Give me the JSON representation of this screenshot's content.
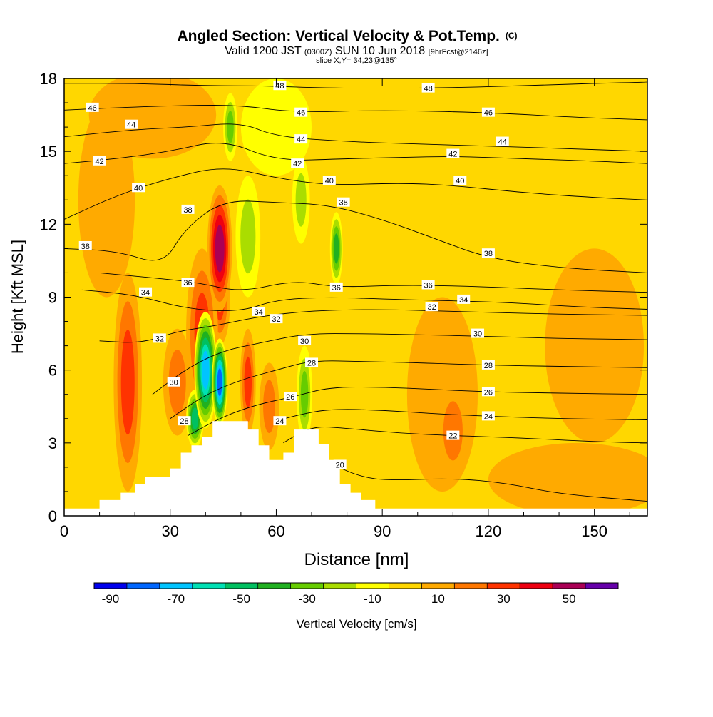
{
  "chart_data": {
    "type": "heatmap",
    "title": "Angled Section: Vertical Velocity & Pot.Temp.",
    "title_mark": "(C)",
    "subtitle_parts": [
      "Valid 1200 JST ",
      "(0300Z)",
      " SUN 10 Jun 2018 ",
      "[9hrFcst@2146z]"
    ],
    "slice_text": "slice X,Y= 34,23@135°",
    "xlabel": "Distance [nm]",
    "ylabel": "Height [Kft MSL]",
    "xlim": [
      0,
      165
    ],
    "ylim": [
      0,
      18
    ],
    "x_ticks": [
      0,
      30,
      60,
      90,
      120,
      150
    ],
    "y_ticks": [
      0,
      3,
      6,
      9,
      12,
      15,
      18
    ],
    "background_value": -5,
    "colorbar": {
      "label": "Vertical Velocity [cm/s]",
      "bounds": [
        -95,
        -85,
        -75,
        -65,
        -55,
        -45,
        -35,
        -25,
        -15,
        -5,
        5,
        15,
        25,
        35,
        45,
        55,
        65
      ],
      "colors": [
        "#0000ee",
        "#0066ff",
        "#00c4ff",
        "#00e0b4",
        "#00c060",
        "#20b020",
        "#66cc00",
        "#aadd00",
        "#ffff00",
        "#ffd700",
        "#ffaa00",
        "#ff7700",
        "#ff3300",
        "#ee0011",
        "#aa0055",
        "#6600aa"
      ],
      "tick_labels": [
        "-90",
        "-70",
        "-50",
        "-30",
        "-10",
        "10",
        "30",
        "50"
      ],
      "tick_values": [
        -90,
        -70,
        -50,
        -30,
        -10,
        10,
        30,
        50
      ]
    },
    "terrain": [
      {
        "x": 0,
        "h": 0.3
      },
      {
        "x": 10,
        "h": 0.3
      },
      {
        "x": 10,
        "h": 0.65
      },
      {
        "x": 16,
        "h": 0.65
      },
      {
        "x": 16,
        "h": 0.95
      },
      {
        "x": 20,
        "h": 0.95
      },
      {
        "x": 20,
        "h": 1.3
      },
      {
        "x": 23,
        "h": 1.3
      },
      {
        "x": 23,
        "h": 1.6
      },
      {
        "x": 30,
        "h": 1.6
      },
      {
        "x": 30,
        "h": 1.95
      },
      {
        "x": 33,
        "h": 1.95
      },
      {
        "x": 33,
        "h": 2.6
      },
      {
        "x": 36,
        "h": 2.6
      },
      {
        "x": 36,
        "h": 2.9
      },
      {
        "x": 39,
        "h": 2.9
      },
      {
        "x": 39,
        "h": 3.25
      },
      {
        "x": 42,
        "h": 3.25
      },
      {
        "x": 42,
        "h": 3.9
      },
      {
        "x": 52,
        "h": 3.9
      },
      {
        "x": 52,
        "h": 3.55
      },
      {
        "x": 55,
        "h": 3.55
      },
      {
        "x": 55,
        "h": 2.9
      },
      {
        "x": 58,
        "h": 2.9
      },
      {
        "x": 58,
        "h": 2.3
      },
      {
        "x": 62,
        "h": 2.3
      },
      {
        "x": 62,
        "h": 2.6
      },
      {
        "x": 65,
        "h": 2.6
      },
      {
        "x": 65,
        "h": 3.55
      },
      {
        "x": 72,
        "h": 3.55
      },
      {
        "x": 72,
        "h": 2.95
      },
      {
        "x": 75,
        "h": 2.95
      },
      {
        "x": 75,
        "h": 2.3
      },
      {
        "x": 78,
        "h": 2.3
      },
      {
        "x": 78,
        "h": 1.3
      },
      {
        "x": 81,
        "h": 1.3
      },
      {
        "x": 81,
        "h": 0.95
      },
      {
        "x": 84,
        "h": 0.95
      },
      {
        "x": 84,
        "h": 0.65
      },
      {
        "x": 88,
        "h": 0.65
      },
      {
        "x": 88,
        "h": 0.3
      },
      {
        "x": 165,
        "h": 0.3
      }
    ],
    "velocity_features": [
      {
        "x": 18,
        "y": 5.5,
        "rx": 4.0,
        "ry": 4.5,
        "v": 30
      },
      {
        "x": 32,
        "y": 5.5,
        "rx": 4.0,
        "ry": 2.2,
        "v": 28
      },
      {
        "x": 39,
        "y": 7.5,
        "rx": 4.5,
        "ry": 3.5,
        "v": 32
      },
      {
        "x": 44,
        "y": 11.0,
        "rx": 3.5,
        "ry": 2.6,
        "v": 58
      },
      {
        "x": 44,
        "y": 9.0,
        "rx": 3.0,
        "ry": 2.0,
        "v": 30
      },
      {
        "x": 40,
        "y": 6.0,
        "rx": 3.2,
        "ry": 2.4,
        "v": -72
      },
      {
        "x": 44,
        "y": 5.5,
        "rx": 2.2,
        "ry": 1.8,
        "v": -88
      },
      {
        "x": 37,
        "y": 4.0,
        "rx": 2.5,
        "ry": 1.2,
        "v": -52
      },
      {
        "x": 47,
        "y": 16.0,
        "rx": 2.0,
        "ry": 1.4,
        "v": -30
      },
      {
        "x": 52,
        "y": 11.5,
        "rx": 3.5,
        "ry": 2.5,
        "v": -25
      },
      {
        "x": 67,
        "y": 13.0,
        "rx": 2.5,
        "ry": 1.8,
        "v": -25
      },
      {
        "x": 77,
        "y": 11.0,
        "rx": 1.8,
        "ry": 1.5,
        "v": -40
      },
      {
        "x": 68,
        "y": 5.0,
        "rx": 2.2,
        "ry": 2.0,
        "v": -35
      },
      {
        "x": 52,
        "y": 5.5,
        "rx": 2.2,
        "ry": 2.2,
        "v": 30
      },
      {
        "x": 58,
        "y": 4.5,
        "rx": 2.8,
        "ry": 1.8,
        "v": 25
      },
      {
        "x": 110,
        "y": 3.5,
        "rx": 4.5,
        "ry": 2.0,
        "v": 25
      },
      {
        "x": 107,
        "y": 5.0,
        "rx": 10.0,
        "ry": 4.0,
        "v": 8
      },
      {
        "x": 150,
        "y": 7.0,
        "rx": 14.0,
        "ry": 4.0,
        "v": 5
      },
      {
        "x": 25,
        "y": 16.5,
        "rx": 18.0,
        "ry": 1.8,
        "v": 5
      },
      {
        "x": 12,
        "y": 13.0,
        "rx": 8.0,
        "ry": 4.0,
        "v": 6
      },
      {
        "x": 145,
        "y": 1.5,
        "rx": 25.0,
        "ry": 1.5,
        "v": 5
      },
      {
        "x": 100,
        "y": 15.0,
        "rx": 14.0,
        "ry": 3.0,
        "v": -3
      },
      {
        "x": 60,
        "y": 16.0,
        "rx": 10.0,
        "ry": 2.0,
        "v": -12
      }
    ],
    "isentropes": [
      {
        "theta": 20,
        "label_x": 78,
        "label_y": 2.0,
        "pts": [
          [
            64,
            2.4
          ],
          [
            70,
            2.35
          ],
          [
            76,
            2.1
          ],
          [
            84,
            1.6
          ],
          [
            92,
            1.45
          ],
          [
            110,
            1.55
          ],
          [
            125,
            1.35
          ],
          [
            140,
            0.9
          ],
          [
            165,
            0.6
          ]
        ]
      },
      {
        "theta": 22,
        "label_x": 110,
        "label_y": 3.3,
        "pts": [
          [
            62,
            3.0
          ],
          [
            70,
            3.7
          ],
          [
            80,
            3.6
          ],
          [
            95,
            3.4
          ],
          [
            110,
            3.3
          ],
          [
            130,
            3.2
          ],
          [
            150,
            3.05
          ],
          [
            165,
            3.0
          ]
        ]
      },
      {
        "theta": 24,
        "label_x": 120,
        "label_y": 4.1,
        "pts": [
          [
            60,
            3.9
          ],
          [
            66,
            4.15
          ],
          [
            75,
            4.4
          ],
          [
            90,
            4.35
          ],
          [
            105,
            4.2
          ],
          [
            120,
            4.1
          ],
          [
            140,
            4.0
          ],
          [
            165,
            3.95
          ]
        ]
      },
      {
        "theta": 26,
        "label_x": 120,
        "label_y": 5.1,
        "pts": [
          [
            35,
            3.3
          ],
          [
            45,
            4.1
          ],
          [
            55,
            4.6
          ],
          [
            65,
            4.9
          ],
          [
            75,
            5.3
          ],
          [
            90,
            5.3
          ],
          [
            105,
            5.2
          ],
          [
            120,
            5.1
          ],
          [
            140,
            5.05
          ],
          [
            165,
            5.0
          ]
        ]
      },
      {
        "theta": 28,
        "label_x": 120,
        "label_y": 6.2,
        "pts": [
          [
            30,
            4.0
          ],
          [
            40,
            5.0
          ],
          [
            50,
            5.6
          ],
          [
            60,
            6.0
          ],
          [
            70,
            6.4
          ],
          [
            85,
            6.35
          ],
          [
            100,
            6.3
          ],
          [
            120,
            6.2
          ],
          [
            140,
            6.15
          ],
          [
            165,
            6.1
          ]
        ]
      },
      {
        "theta": 30,
        "label_x": 117,
        "label_y": 7.4,
        "pts": [
          [
            25,
            5.0
          ],
          [
            35,
            6.1
          ],
          [
            45,
            6.8
          ],
          [
            55,
            7.1
          ],
          [
            68,
            7.5
          ],
          [
            85,
            7.5
          ],
          [
            100,
            7.45
          ],
          [
            117,
            7.4
          ],
          [
            140,
            7.3
          ],
          [
            165,
            7.25
          ]
        ]
      },
      {
        "theta": 32,
        "label_x": 112,
        "label_y": 8.4,
        "pts": [
          [
            10,
            7.2
          ],
          [
            22,
            7.1
          ],
          [
            32,
            7.6
          ],
          [
            42,
            7.8
          ],
          [
            55,
            8.2
          ],
          [
            70,
            8.45
          ],
          [
            90,
            8.5
          ],
          [
            112,
            8.4
          ],
          [
            140,
            8.3
          ],
          [
            165,
            8.25
          ]
        ]
      },
      {
        "theta": 34,
        "label_x": 124,
        "label_y": 8.8,
        "pts": [
          [
            5,
            9.3
          ],
          [
            20,
            9.1
          ],
          [
            35,
            8.5
          ],
          [
            50,
            8.4
          ],
          [
            60,
            8.9
          ],
          [
            75,
            9.0
          ],
          [
            95,
            8.9
          ],
          [
            124,
            8.8
          ],
          [
            145,
            8.6
          ],
          [
            165,
            8.5
          ]
        ]
      },
      {
        "theta": 36,
        "label_x": 77,
        "label_y": 9.4,
        "pts": [
          [
            10,
            10.0
          ],
          [
            25,
            9.8
          ],
          [
            38,
            9.6
          ],
          [
            50,
            9.2
          ],
          [
            65,
            9.7
          ],
          [
            77,
            9.4
          ],
          [
            95,
            9.5
          ],
          [
            115,
            9.45
          ],
          [
            140,
            9.3
          ],
          [
            165,
            9.2
          ]
        ]
      },
      {
        "theta": 38,
        "label_x": 120,
        "label_y": 10.6,
        "pts": [
          [
            0,
            11.0
          ],
          [
            15,
            10.9
          ],
          [
            28,
            10.3
          ],
          [
            34,
            11.8
          ],
          [
            45,
            13.0
          ],
          [
            60,
            12.9
          ],
          [
            75,
            12.8
          ],
          [
            90,
            12.2
          ],
          [
            105,
            11.4
          ],
          [
            120,
            10.6
          ],
          [
            140,
            10.2
          ],
          [
            165,
            10.0
          ]
        ]
      },
      {
        "theta": 40,
        "label_x": 110,
        "label_y": 13.6,
        "pts": [
          [
            0,
            12.2
          ],
          [
            15,
            13.2
          ],
          [
            30,
            13.9
          ],
          [
            45,
            14.4
          ],
          [
            60,
            13.9
          ],
          [
            75,
            13.6
          ],
          [
            95,
            13.7
          ],
          [
            110,
            13.6
          ],
          [
            130,
            13.3
          ],
          [
            150,
            13.1
          ],
          [
            165,
            13.0
          ]
        ]
      },
      {
        "theta": 42,
        "label_x": 110,
        "label_y": 14.8,
        "pts": [
          [
            0,
            14.5
          ],
          [
            15,
            14.7
          ],
          [
            30,
            15.0
          ],
          [
            45,
            15.5
          ],
          [
            60,
            14.6
          ],
          [
            80,
            14.7
          ],
          [
            95,
            14.75
          ],
          [
            110,
            14.8
          ],
          [
            130,
            14.7
          ],
          [
            150,
            14.6
          ],
          [
            165,
            14.5
          ]
        ]
      },
      {
        "theta": 44,
        "label_x": 125,
        "label_y": 15.2,
        "pts": [
          [
            0,
            15.6
          ],
          [
            20,
            15.9
          ],
          [
            35,
            16.0
          ],
          [
            50,
            16.2
          ],
          [
            60,
            15.6
          ],
          [
            80,
            15.4
          ],
          [
            100,
            15.3
          ],
          [
            125,
            15.2
          ],
          [
            145,
            15.1
          ],
          [
            165,
            15.0
          ]
        ]
      },
      {
        "theta": 46,
        "label_x": 120,
        "label_y": 16.6,
        "pts": [
          [
            0,
            16.7
          ],
          [
            15,
            16.8
          ],
          [
            35,
            16.9
          ],
          [
            50,
            16.9
          ],
          [
            65,
            16.6
          ],
          [
            90,
            16.7
          ],
          [
            120,
            16.6
          ],
          [
            145,
            16.4
          ],
          [
            165,
            16.3
          ]
        ]
      },
      {
        "theta": 48,
        "label_x": 104,
        "label_y": 17.6,
        "pts": [
          [
            0,
            17.8
          ],
          [
            20,
            17.8
          ],
          [
            40,
            17.7
          ],
          [
            56,
            17.7
          ],
          [
            75,
            17.6
          ],
          [
            104,
            17.6
          ],
          [
            130,
            17.7
          ],
          [
            150,
            17.8
          ],
          [
            165,
            17.85
          ]
        ]
      }
    ],
    "theta_labels": [
      {
        "x": 8,
        "y": 16.8,
        "text": "46"
      },
      {
        "x": 19,
        "y": 16.1,
        "text": "44"
      },
      {
        "x": 10,
        "y": 14.6,
        "text": "42"
      },
      {
        "x": 21,
        "y": 13.5,
        "text": "40"
      },
      {
        "x": 35,
        "y": 12.6,
        "text": "38"
      },
      {
        "x": 6,
        "y": 11.1,
        "text": "38"
      },
      {
        "x": 35,
        "y": 9.6,
        "text": "36"
      },
      {
        "x": 23,
        "y": 9.2,
        "text": "34"
      },
      {
        "x": 27,
        "y": 7.3,
        "text": "32"
      },
      {
        "x": 31,
        "y": 5.5,
        "text": "30"
      },
      {
        "x": 34,
        "y": 3.9,
        "text": "28"
      },
      {
        "x": 61,
        "y": 3.9,
        "text": "24"
      },
      {
        "x": 64,
        "y": 4.9,
        "text": "26"
      },
      {
        "x": 70,
        "y": 6.3,
        "text": "28"
      },
      {
        "x": 68,
        "y": 7.2,
        "text": "30"
      },
      {
        "x": 55,
        "y": 8.4,
        "text": "34"
      },
      {
        "x": 60,
        "y": 8.1,
        "text": "32"
      },
      {
        "x": 77,
        "y": 9.4,
        "text": "36"
      },
      {
        "x": 79,
        "y": 12.9,
        "text": "38"
      },
      {
        "x": 75,
        "y": 13.8,
        "text": "40"
      },
      {
        "x": 66,
        "y": 14.5,
        "text": "42"
      },
      {
        "x": 67,
        "y": 15.5,
        "text": "44"
      },
      {
        "x": 67,
        "y": 16.6,
        "text": "46"
      },
      {
        "x": 61,
        "y": 17.7,
        "text": "48"
      },
      {
        "x": 103,
        "y": 17.6,
        "text": "48"
      },
      {
        "x": 120,
        "y": 16.6,
        "text": "46"
      },
      {
        "x": 124,
        "y": 15.4,
        "text": "44"
      },
      {
        "x": 110,
        "y": 14.9,
        "text": "42"
      },
      {
        "x": 112,
        "y": 13.8,
        "text": "40"
      },
      {
        "x": 120,
        "y": 10.8,
        "text": "38"
      },
      {
        "x": 103,
        "y": 9.5,
        "text": "36"
      },
      {
        "x": 113,
        "y": 8.9,
        "text": "34"
      },
      {
        "x": 104,
        "y": 8.6,
        "text": "32"
      },
      {
        "x": 117,
        "y": 7.5,
        "text": "30"
      },
      {
        "x": 120,
        "y": 6.2,
        "text": "28"
      },
      {
        "x": 120,
        "y": 5.1,
        "text": "26"
      },
      {
        "x": 120,
        "y": 4.1,
        "text": "24"
      },
      {
        "x": 110,
        "y": 3.3,
        "text": "22"
      },
      {
        "x": 78,
        "y": 2.1,
        "text": "20"
      }
    ]
  }
}
